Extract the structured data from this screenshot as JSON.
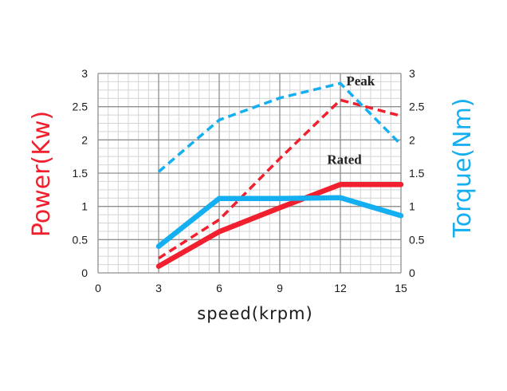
{
  "chart_data": {
    "type": "line",
    "xlabel": "speed(krpm)",
    "x_ticks": [
      "0",
      "3",
      "6",
      "9",
      "12",
      "15"
    ],
    "xlim": [
      0,
      15
    ],
    "y_left": {
      "label": "Power(Kw)",
      "color": "#f0202e",
      "ticks": [
        "0",
        "0.5",
        "1",
        "1.5",
        "2",
        "2.5",
        "3"
      ],
      "ylim": [
        0,
        3
      ]
    },
    "y_right": {
      "label": "Torque(Nm)",
      "color": "#14aff0",
      "ticks": [
        "0",
        "0.5",
        "1",
        "1.5",
        "2",
        "2.5",
        "3"
      ],
      "ylim": [
        0,
        3
      ]
    },
    "grid": true,
    "annotations": [
      {
        "text": "Peak",
        "x": 13.0,
        "y": 2.82
      },
      {
        "text": "Rated",
        "x": 12.2,
        "y": 1.64
      }
    ],
    "series": [
      {
        "id": "power_rated",
        "axis": "left",
        "color": "#f0202e",
        "style": "solid",
        "x": [
          3,
          6,
          9,
          12,
          15
        ],
        "y": [
          0.1,
          0.62,
          0.98,
          1.33,
          1.33
        ]
      },
      {
        "id": "power_peak",
        "axis": "left",
        "color": "#f0202e",
        "style": "dashed",
        "x": [
          3,
          6,
          9,
          12,
          15
        ],
        "y": [
          0.22,
          0.8,
          1.72,
          2.6,
          2.36
        ]
      },
      {
        "id": "torque_rated",
        "axis": "right",
        "color": "#14aff0",
        "style": "solid",
        "x": [
          3,
          6,
          9,
          12,
          15
        ],
        "y": [
          0.4,
          1.12,
          1.12,
          1.13,
          0.86
        ]
      },
      {
        "id": "torque_peak",
        "axis": "right",
        "color": "#14aff0",
        "style": "dashed",
        "x": [
          3,
          6,
          9,
          12,
          15
        ],
        "y": [
          1.52,
          2.3,
          2.63,
          2.85,
          1.93
        ]
      }
    ]
  }
}
